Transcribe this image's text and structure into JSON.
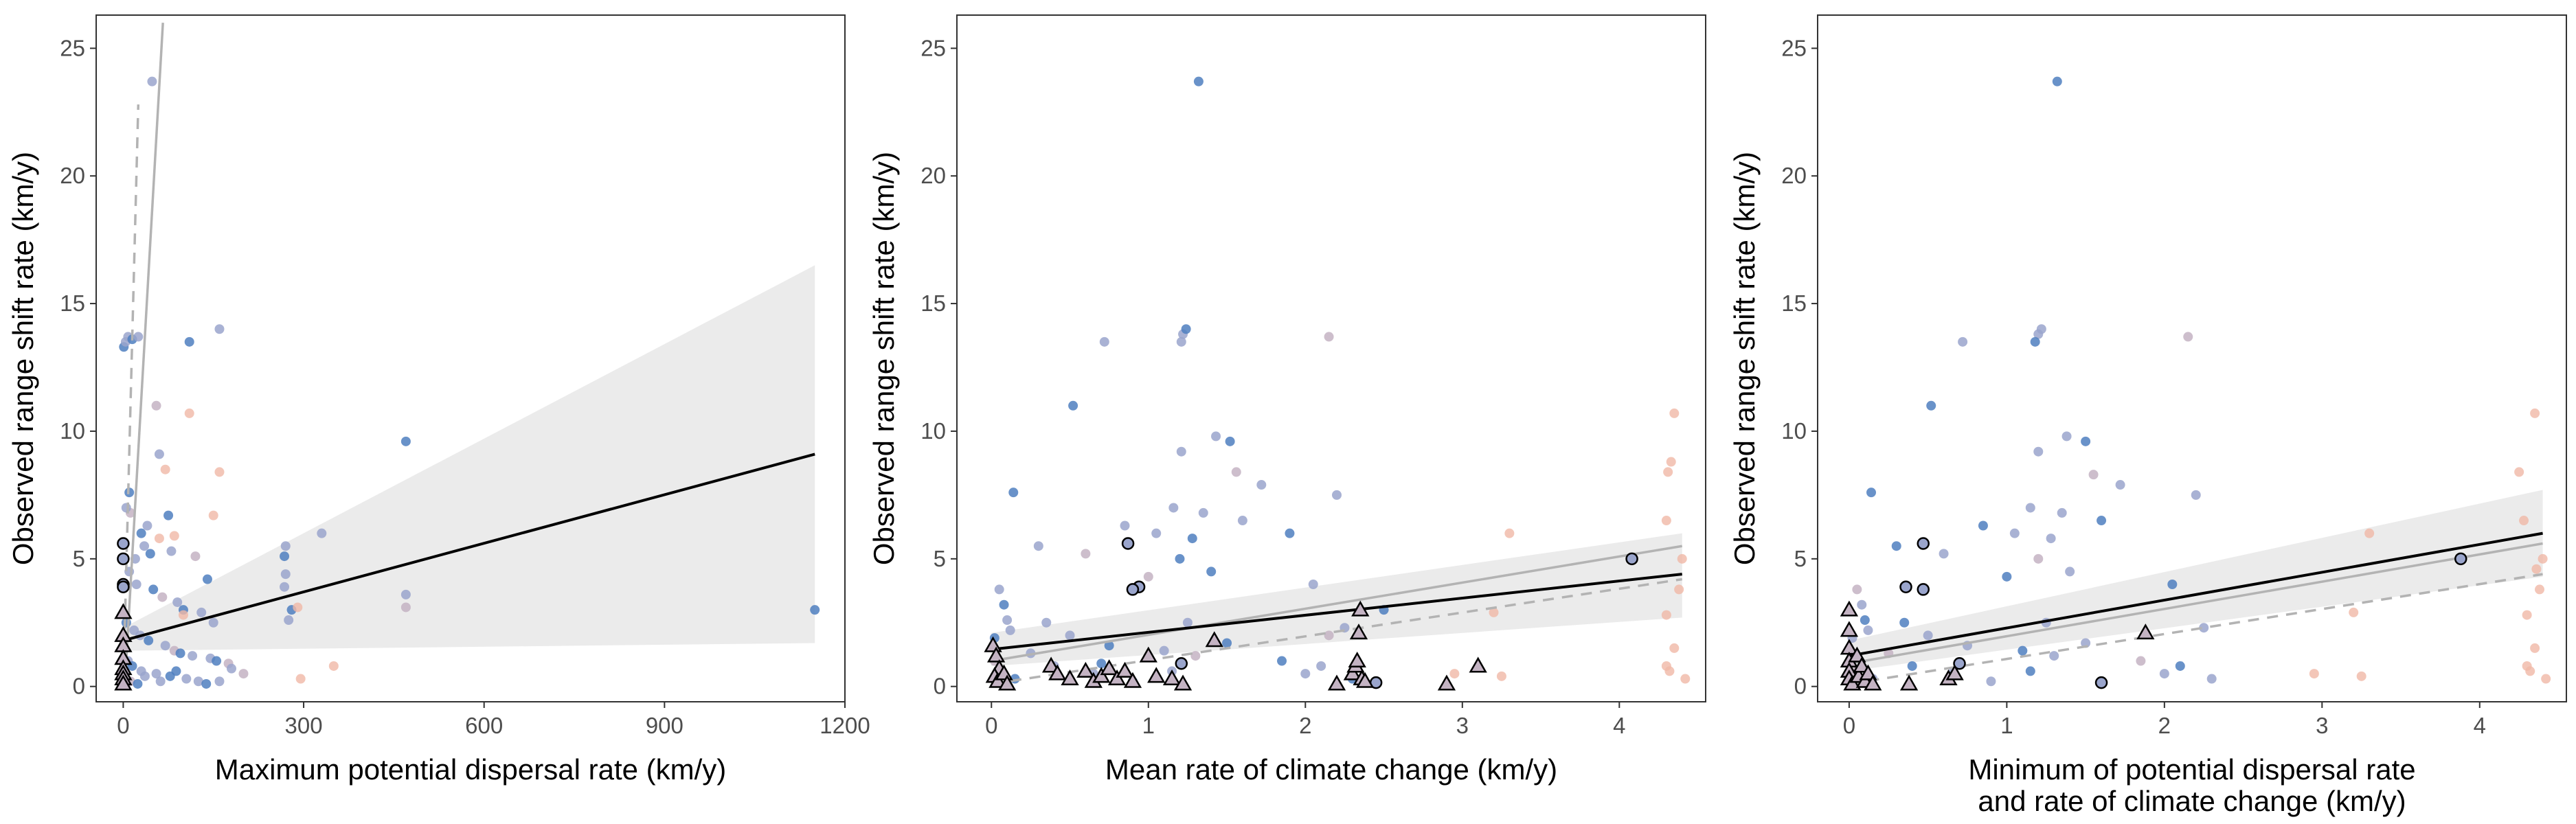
{
  "colors": {
    "blue": "#4f7fbf",
    "lavender": "#9aa5cc",
    "pink": "#f0b8a6",
    "mauve": "#c4b3c3",
    "fit_black": "#000000",
    "fit_grey": "#b3b3b3",
    "ribbon": "#ebebeb",
    "panel_border": "#333333"
  },
  "chart_data": [
    {
      "type": "scatter",
      "xlabel": [
        "Maximum potential dispersal rate (km/y)"
      ],
      "ylabel": "Observed range shift rate (km/y)",
      "xlim": [
        -45,
        1200
      ],
      "ylim": [
        -0.6,
        26.3
      ],
      "xticks": [
        0,
        300,
        600,
        900,
        1200
      ],
      "yticks": [
        0,
        5,
        10,
        15,
        20,
        25
      ],
      "xtick_labels": [
        "0",
        "300",
        "600",
        "900",
        "1200"
      ],
      "ytick_labels": [
        "0",
        "5",
        "10",
        "15",
        "20",
        "25"
      ],
      "grid": false,
      "points": [
        [
          1,
          13.3
        ],
        [
          4,
          13.5
        ],
        [
          8,
          13.7
        ],
        [
          15,
          13.6
        ],
        [
          25,
          13.7
        ],
        [
          55,
          11.0
        ],
        [
          110,
          13.5
        ],
        [
          160,
          14.0
        ],
        [
          48,
          23.7
        ],
        [
          10,
          7.6
        ],
        [
          12,
          6.8
        ],
        [
          5,
          7.0
        ],
        [
          30,
          6.0
        ],
        [
          40,
          6.3
        ],
        [
          60,
          9.1
        ],
        [
          75,
          6.7
        ],
        [
          20,
          5.0
        ],
        [
          35,
          5.5
        ],
        [
          45,
          5.2
        ],
        [
          80,
          5.3
        ],
        [
          120,
          5.1
        ],
        [
          140,
          4.2
        ],
        [
          10,
          4.5
        ],
        [
          22,
          4.0
        ],
        [
          50,
          3.8
        ],
        [
          65,
          3.5
        ],
        [
          90,
          3.3
        ],
        [
          100,
          3.0
        ],
        [
          130,
          2.9
        ],
        [
          150,
          2.5
        ],
        [
          5,
          2.5
        ],
        [
          18,
          2.2
        ],
        [
          28,
          2.0
        ],
        [
          42,
          1.8
        ],
        [
          70,
          1.6
        ],
        [
          85,
          1.4
        ],
        [
          95,
          1.3
        ],
        [
          115,
          1.2
        ],
        [
          145,
          1.1
        ],
        [
          155,
          1.0
        ],
        [
          175,
          0.9
        ],
        [
          8,
          1.0
        ],
        [
          15,
          0.8
        ],
        [
          30,
          0.6
        ],
        [
          55,
          0.5
        ],
        [
          78,
          0.4
        ],
        [
          105,
          0.3
        ],
        [
          125,
          0.2
        ],
        [
          138,
          0.1
        ],
        [
          3,
          0.3
        ],
        [
          12,
          0.2
        ],
        [
          24,
          0.1
        ],
        [
          36,
          0.4
        ],
        [
          62,
          0.2
        ],
        [
          88,
          0.6
        ],
        [
          200,
          0.5
        ],
        [
          270,
          5.5
        ],
        [
          268,
          5.1
        ],
        [
          270,
          4.4
        ],
        [
          268,
          3.9
        ],
        [
          280,
          3.0
        ],
        [
          275,
          2.6
        ],
        [
          330,
          6.0
        ],
        [
          470,
          9.6
        ],
        [
          470,
          3.6
        ],
        [
          470,
          3.1
        ],
        [
          1150,
          3.0
        ],
        [
          160,
          0.2
        ],
        [
          180,
          0.7
        ]
      ],
      "points_pink": [
        [
          70,
          8.5
        ],
        [
          110,
          10.7
        ],
        [
          60,
          5.8
        ],
        [
          150,
          6.7
        ],
        [
          290,
          3.1
        ],
        [
          295,
          0.3
        ],
        [
          350,
          0.8
        ],
        [
          160,
          8.4
        ],
        [
          85,
          5.9
        ],
        [
          100,
          2.8
        ]
      ],
      "circles": [
        [
          0,
          5.6
        ],
        [
          0,
          5.0
        ],
        [
          0,
          4.0
        ],
        [
          0,
          3.9
        ]
      ],
      "triangles": [
        [
          0,
          2.9
        ],
        [
          0,
          2.0
        ],
        [
          0,
          1.6
        ],
        [
          0,
          1.1
        ],
        [
          0,
          0.7
        ],
        [
          0,
          0.5
        ],
        [
          0,
          0.3
        ],
        [
          0,
          0.1
        ]
      ],
      "fit_black": [
        [
          0,
          1.8
        ],
        [
          1150,
          9.1
        ]
      ],
      "ribbon": [
        [
          0,
          1.4
        ],
        [
          0,
          2.3
        ],
        [
          1150,
          16.5
        ],
        [
          1150,
          1.7
        ]
      ],
      "fit_grey": [
        [
          3,
          0.2
        ],
        [
          66,
          26.0
        ]
      ],
      "fit_grey_dashed": [
        [
          0,
          0
        ],
        [
          25,
          22.8
        ]
      ]
    },
    {
      "type": "scatter",
      "xlabel": [
        "Mean rate of climate change (km/y)"
      ],
      "ylabel": "Observed range shift rate (km/y)",
      "xlim": [
        -0.22,
        4.55
      ],
      "ylim": [
        -0.6,
        26.3
      ],
      "xticks": [
        0,
        1,
        2,
        3,
        4
      ],
      "yticks": [
        0,
        5,
        10,
        15,
        20,
        25
      ],
      "xtick_labels": [
        "0",
        "1",
        "2",
        "3",
        "4"
      ],
      "ytick_labels": [
        "0",
        "5",
        "10",
        "15",
        "20",
        "25"
      ],
      "grid": false,
      "points": [
        [
          1.32,
          23.7
        ],
        [
          1.22,
          13.8
        ],
        [
          1.21,
          13.5
        ],
        [
          1.24,
          14.0
        ],
        [
          0.72,
          13.5
        ],
        [
          2.15,
          13.7
        ],
        [
          0.52,
          11.0
        ],
        [
          1.43,
          9.8
        ],
        [
          1.21,
          9.2
        ],
        [
          1.52,
          9.6
        ],
        [
          1.56,
          8.4
        ],
        [
          1.72,
          7.9
        ],
        [
          0.14,
          7.6
        ],
        [
          1.16,
          7.0
        ],
        [
          1.35,
          6.8
        ],
        [
          1.9,
          6.0
        ],
        [
          0.85,
          6.3
        ],
        [
          1.05,
          6.0
        ],
        [
          1.28,
          5.8
        ],
        [
          0.3,
          5.5
        ],
        [
          0.6,
          5.2
        ],
        [
          1.2,
          5.0
        ],
        [
          1.6,
          6.5
        ],
        [
          2.2,
          7.5
        ],
        [
          1.4,
          4.5
        ],
        [
          1.0,
          4.3
        ],
        [
          0.05,
          3.8
        ],
        [
          0.08,
          3.2
        ],
        [
          0.1,
          2.6
        ],
        [
          0.12,
          2.2
        ],
        [
          0.02,
          1.9
        ],
        [
          0.35,
          2.5
        ],
        [
          0.5,
          2.0
        ],
        [
          0.75,
          1.6
        ],
        [
          1.1,
          1.4
        ],
        [
          1.3,
          1.2
        ],
        [
          1.85,
          1.0
        ],
        [
          2.1,
          0.8
        ],
        [
          2.0,
          0.5
        ],
        [
          2.3,
          0.3
        ],
        [
          0.02,
          1.0
        ],
        [
          0.05,
          0.6
        ],
        [
          0.15,
          0.3
        ],
        [
          0.4,
          0.8
        ],
        [
          0.65,
          0.5
        ],
        [
          0.9,
          0.2
        ],
        [
          1.15,
          0.6
        ],
        [
          1.25,
          2.5
        ],
        [
          1.5,
          1.7
        ],
        [
          2.05,
          4.0
        ],
        [
          2.15,
          2.0
        ],
        [
          2.5,
          3.0
        ],
        [
          2.25,
          2.3
        ],
        [
          0.25,
          1.3
        ],
        [
          0.7,
          0.9
        ]
      ],
      "points_pink": [
        [
          4.35,
          10.7
        ],
        [
          4.33,
          8.8
        ],
        [
          4.31,
          8.4
        ],
        [
          4.3,
          6.5
        ],
        [
          4.4,
          5.0
        ],
        [
          4.38,
          3.8
        ],
        [
          4.3,
          2.8
        ],
        [
          4.35,
          1.5
        ],
        [
          4.3,
          0.8
        ],
        [
          4.32,
          0.6
        ],
        [
          3.3,
          6.0
        ],
        [
          3.2,
          2.9
        ],
        [
          2.95,
          0.5
        ],
        [
          3.25,
          0.4
        ],
        [
          4.42,
          0.3
        ]
      ],
      "circles": [
        [
          0.87,
          5.6
        ],
        [
          0.94,
          3.9
        ],
        [
          0.9,
          3.8
        ],
        [
          4.08,
          5.0
        ],
        [
          1.21,
          0.9
        ],
        [
          2.45,
          0.15
        ]
      ],
      "triangles": [
        [
          0.01,
          1.6
        ],
        [
          0.03,
          1.2
        ],
        [
          0.05,
          0.7
        ],
        [
          0.02,
          0.4
        ],
        [
          0.04,
          0.2
        ],
        [
          0.08,
          0.5
        ],
        [
          0.1,
          0.1
        ],
        [
          0.38,
          0.8
        ],
        [
          0.42,
          0.5
        ],
        [
          0.5,
          0.3
        ],
        [
          0.6,
          0.6
        ],
        [
          0.65,
          0.2
        ],
        [
          0.7,
          0.4
        ],
        [
          0.75,
          0.7
        ],
        [
          0.8,
          0.3
        ],
        [
          0.85,
          0.6
        ],
        [
          0.9,
          0.2
        ],
        [
          1.0,
          1.2
        ],
        [
          1.05,
          0.4
        ],
        [
          1.15,
          0.3
        ],
        [
          1.22,
          0.1
        ],
        [
          1.42,
          1.8
        ],
        [
          2.2,
          0.1
        ],
        [
          2.3,
          0.5
        ],
        [
          2.32,
          0.8
        ],
        [
          2.33,
          1.0
        ],
        [
          2.34,
          2.1
        ],
        [
          2.35,
          3.0
        ],
        [
          2.36,
          0.3
        ],
        [
          2.38,
          0.2
        ],
        [
          2.9,
          0.1
        ],
        [
          3.1,
          0.8
        ]
      ],
      "fit_black": [
        [
          0,
          1.45
        ],
        [
          4.4,
          4.4
        ]
      ],
      "ribbon": [
        [
          0,
          0.8
        ],
        [
          0,
          2.1
        ],
        [
          4.4,
          6.0
        ],
        [
          4.4,
          2.7
        ]
      ],
      "fit_grey": [
        [
          0,
          1.0
        ],
        [
          4.4,
          5.5
        ]
      ],
      "fit_grey_dashed": [
        [
          0,
          0.1
        ],
        [
          4.4,
          4.2
        ]
      ]
    },
    {
      "type": "scatter",
      "xlabel": [
        "Minimum of potential dispersal rate",
        "and rate of climate change (km/y)"
      ],
      "ylabel": "Observed range shift rate (km/y)",
      "xlim": [
        -0.2,
        4.55
      ],
      "ylim": [
        -0.6,
        26.3
      ],
      "xticks": [
        0,
        1,
        2,
        3,
        4
      ],
      "yticks": [
        0,
        5,
        10,
        15,
        20,
        25
      ],
      "xtick_labels": [
        "0",
        "1",
        "2",
        "3",
        "4"
      ],
      "ytick_labels": [
        "0",
        "5",
        "10",
        "15",
        "20",
        "25"
      ],
      "grid": false,
      "points": [
        [
          1.32,
          23.7
        ],
        [
          1.2,
          13.8
        ],
        [
          1.22,
          14.0
        ],
        [
          1.18,
          13.5
        ],
        [
          0.72,
          13.5
        ],
        [
          2.15,
          13.7
        ],
        [
          0.52,
          11.0
        ],
        [
          1.38,
          9.8
        ],
        [
          1.2,
          9.2
        ],
        [
          1.5,
          9.6
        ],
        [
          1.55,
          8.3
        ],
        [
          1.72,
          7.9
        ],
        [
          0.14,
          7.6
        ],
        [
          1.15,
          7.0
        ],
        [
          1.35,
          6.8
        ],
        [
          0.85,
          6.3
        ],
        [
          1.05,
          6.0
        ],
        [
          1.28,
          5.8
        ],
        [
          0.3,
          5.5
        ],
        [
          0.6,
          5.2
        ],
        [
          1.2,
          5.0
        ],
        [
          1.6,
          6.5
        ],
        [
          2.2,
          7.5
        ],
        [
          1.4,
          4.5
        ],
        [
          1.0,
          4.3
        ],
        [
          0.05,
          3.8
        ],
        [
          0.08,
          3.2
        ],
        [
          0.1,
          2.6
        ],
        [
          0.12,
          2.2
        ],
        [
          0.02,
          1.9
        ],
        [
          0.35,
          2.5
        ],
        [
          0.5,
          2.0
        ],
        [
          0.75,
          1.6
        ],
        [
          1.1,
          1.4
        ],
        [
          1.3,
          1.2
        ],
        [
          1.85,
          1.0
        ],
        [
          2.1,
          0.8
        ],
        [
          2.0,
          0.5
        ],
        [
          2.3,
          0.3
        ],
        [
          0.02,
          1.0
        ],
        [
          0.05,
          0.6
        ],
        [
          0.15,
          0.3
        ],
        [
          0.4,
          0.8
        ],
        [
          0.65,
          0.5
        ],
        [
          0.9,
          0.2
        ],
        [
          1.15,
          0.6
        ],
        [
          1.25,
          2.5
        ],
        [
          1.5,
          1.7
        ],
        [
          2.05,
          4.0
        ],
        [
          2.25,
          2.3
        ],
        [
          0.25,
          1.3
        ],
        [
          0.7,
          0.9
        ]
      ],
      "points_pink": [
        [
          4.35,
          10.7
        ],
        [
          4.25,
          8.4
        ],
        [
          4.28,
          6.5
        ],
        [
          4.4,
          5.0
        ],
        [
          4.38,
          3.8
        ],
        [
          4.3,
          2.8
        ],
        [
          4.35,
          1.5
        ],
        [
          4.3,
          0.8
        ],
        [
          4.32,
          0.6
        ],
        [
          3.3,
          6.0
        ],
        [
          3.2,
          2.9
        ],
        [
          2.95,
          0.5
        ],
        [
          3.25,
          0.4
        ],
        [
          4.42,
          0.3
        ],
        [
          4.36,
          4.6
        ]
      ],
      "circles": [
        [
          0.47,
          5.6
        ],
        [
          0.36,
          3.9
        ],
        [
          0.47,
          3.8
        ],
        [
          3.88,
          5.0
        ],
        [
          0.7,
          0.9
        ],
        [
          1.6,
          0.15
        ]
      ],
      "triangles": [
        [
          0.0,
          3.0
        ],
        [
          0.0,
          2.2
        ],
        [
          0.0,
          1.5
        ],
        [
          0.0,
          1.0
        ],
        [
          0.0,
          0.6
        ],
        [
          0.0,
          0.3
        ],
        [
          0.02,
          0.1
        ],
        [
          0.05,
          1.2
        ],
        [
          0.06,
          0.4
        ],
        [
          0.08,
          0.8
        ],
        [
          0.1,
          0.2
        ],
        [
          0.12,
          0.5
        ],
        [
          0.15,
          0.1
        ],
        [
          0.38,
          0.1
        ],
        [
          0.63,
          0.3
        ],
        [
          0.67,
          0.5
        ],
        [
          1.88,
          2.1
        ]
      ],
      "fit_black": [
        [
          0,
          1.2
        ],
        [
          4.4,
          6.0
        ]
      ],
      "ribbon": [
        [
          0,
          0.6
        ],
        [
          0,
          1.8
        ],
        [
          4.4,
          7.7
        ],
        [
          4.4,
          4.3
        ]
      ],
      "fit_grey": [
        [
          0,
          0.9
        ],
        [
          4.4,
          5.6
        ]
      ],
      "fit_grey_dashed": [
        [
          0,
          0.1
        ],
        [
          4.4,
          4.4
        ]
      ]
    }
  ]
}
